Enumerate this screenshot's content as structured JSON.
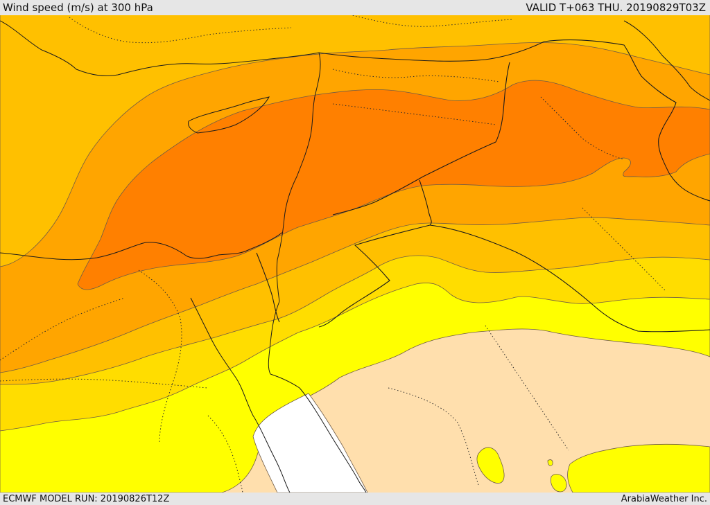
{
  "header": {
    "title": "Wind speed (m/s) at 300 hPa",
    "valid": "VALID T+063 THU. 20190829T03Z"
  },
  "footer": {
    "model_run": "ECMWF MODEL RUN: 20190826T12Z",
    "credit": "ArabiaWeather Inc."
  },
  "palette": {
    "calm": "#ffffff",
    "band_1": "#ffdfad",
    "band_2": "#ffff00",
    "band_3": "#ffdd00",
    "band_4": "#ffc000",
    "band_5": "#ffa500",
    "band_6": "#ff8000",
    "contour_line": "#6f5b46",
    "coastline": "#1a1a1a"
  }
}
